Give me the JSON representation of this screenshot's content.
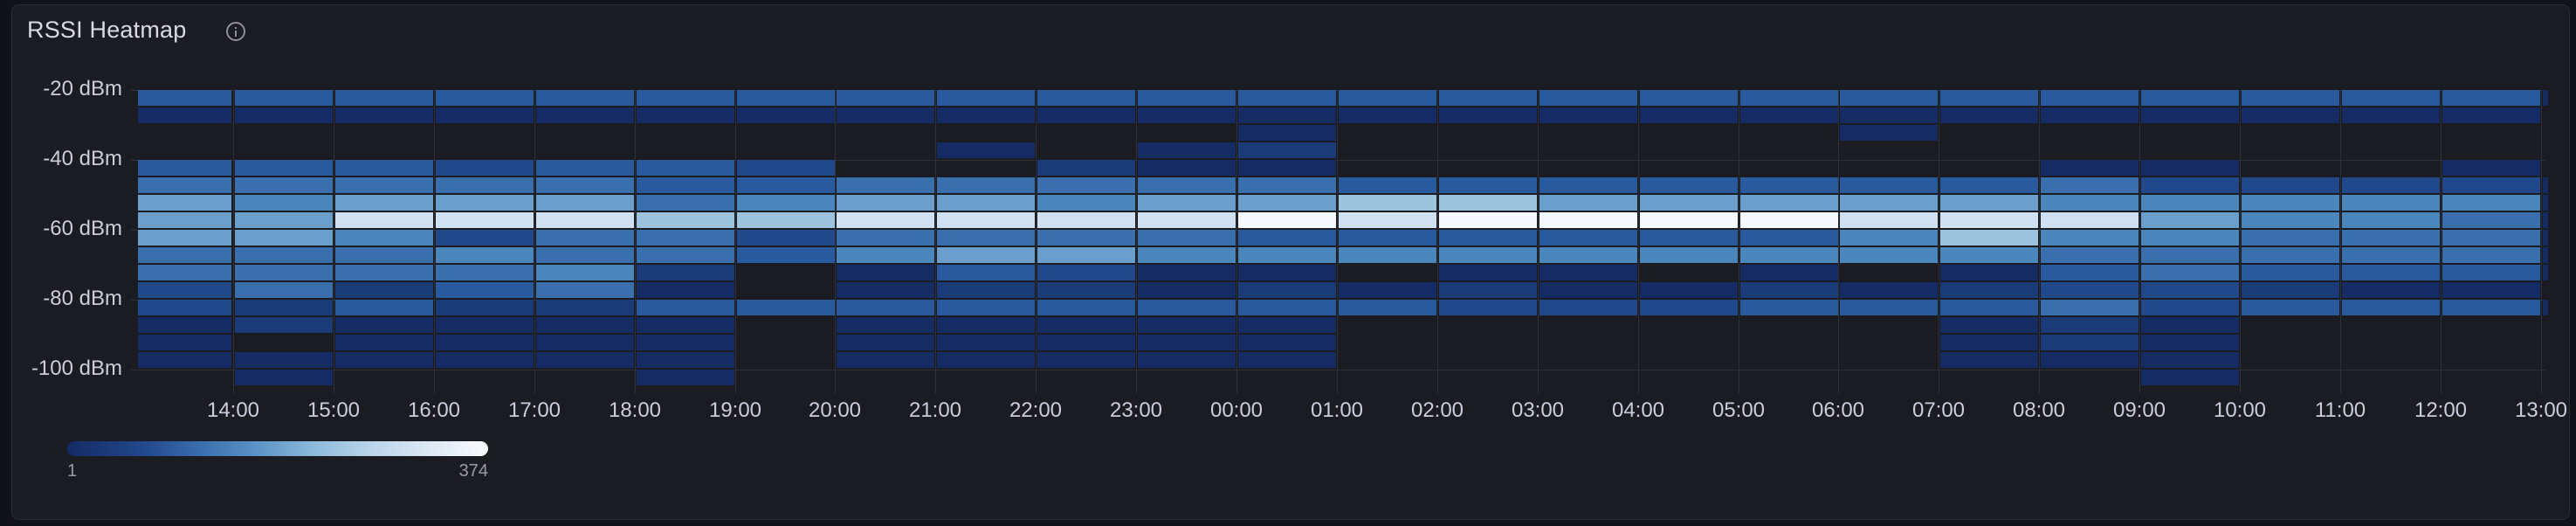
{
  "panel": {
    "title": "RSSI Heatmap",
    "info_icon": "info-circle-icon"
  },
  "chart_data": {
    "type": "heatmap",
    "title": "RSSI Heatmap",
    "xlabel": "",
    "ylabel": "",
    "y_tick_labels": [
      "-20 dBm",
      "-40 dBm",
      "-60 dBm",
      "-80 dBm",
      "-100 dBm"
    ],
    "y_ticks": [
      -20,
      -40,
      -60,
      -80,
      -100
    ],
    "y_bucket_size_dbm": 5,
    "y_buckets": [
      "-20",
      "-25",
      "-30",
      "-35",
      "-40",
      "-45",
      "-50",
      "-55",
      "-60",
      "-65",
      "-70",
      "-75",
      "-80",
      "-85",
      "-90",
      "-95",
      "-100"
    ],
    "x_tick_labels": [
      "14:00",
      "15:00",
      "16:00",
      "17:00",
      "18:00",
      "19:00",
      "20:00",
      "21:00",
      "22:00",
      "23:00",
      "00:00",
      "01:00",
      "02:00",
      "03:00",
      "04:00",
      "05:00",
      "06:00",
      "07:00",
      "08:00",
      "09:00",
      "10:00",
      "11:00",
      "12:00",
      "13:00"
    ],
    "x_buckets": [
      "13:00",
      "14:00",
      "15:00",
      "16:00",
      "17:00",
      "18:00",
      "19:00",
      "20:00",
      "21:00",
      "22:00",
      "23:00",
      "00:00",
      "01:00",
      "02:00",
      "03:00",
      "04:00",
      "05:00",
      "06:00",
      "07:00",
      "08:00",
      "09:00",
      "10:00",
      "11:00",
      "12:00",
      "13:00"
    ],
    "intensity_scale": "0 = empty, 1 (darkest blue) .. 10 (white); counts range 1..374",
    "intensity": [
      [
        4,
        1,
        0,
        0,
        4,
        5,
        7,
        7,
        7,
        5,
        5,
        3,
        3,
        1,
        1,
        1,
        0
      ],
      [
        4,
        1,
        0,
        0,
        4,
        5,
        6,
        7,
        7,
        5,
        5,
        5,
        2,
        2,
        0,
        1,
        1
      ],
      [
        4,
        1,
        0,
        0,
        4,
        5,
        7,
        9,
        6,
        5,
        5,
        2,
        4,
        1,
        1,
        1,
        0
      ],
      [
        4,
        1,
        0,
        0,
        3,
        5,
        7,
        9,
        3,
        6,
        5,
        4,
        2,
        1,
        1,
        1,
        0
      ],
      [
        4,
        1,
        0,
        0,
        4,
        5,
        7,
        9,
        5,
        5,
        6,
        5,
        2,
        1,
        1,
        1,
        0
      ],
      [
        4,
        1,
        0,
        0,
        4,
        4,
        5,
        8,
        5,
        5,
        2,
        1,
        4,
        1,
        1,
        1,
        1
      ],
      [
        4,
        1,
        0,
        0,
        3,
        4,
        6,
        8,
        3,
        4,
        0,
        0,
        4,
        0,
        0,
        0,
        0
      ],
      [
        4,
        1,
        0,
        0,
        0,
        5,
        7,
        9,
        5,
        6,
        1,
        1,
        4,
        1,
        1,
        1,
        0
      ],
      [
        4,
        1,
        0,
        1,
        0,
        5,
        7,
        9,
        5,
        7,
        4,
        2,
        4,
        1,
        1,
        1,
        0
      ],
      [
        4,
        1,
        0,
        0,
        2,
        5,
        6,
        9,
        5,
        7,
        3,
        2,
        4,
        1,
        1,
        1,
        0
      ],
      [
        4,
        1,
        0,
        1,
        1,
        5,
        7,
        9,
        5,
        6,
        1,
        1,
        4,
        1,
        1,
        1,
        0
      ],
      [
        4,
        1,
        1,
        2,
        1,
        5,
        7,
        10,
        4,
        6,
        1,
        2,
        4,
        1,
        1,
        1,
        0
      ],
      [
        4,
        1,
        0,
        0,
        0,
        4,
        8,
        9,
        4,
        6,
        0,
        1,
        4,
        0,
        0,
        0,
        0
      ],
      [
        4,
        1,
        0,
        0,
        0,
        4,
        8,
        10,
        4,
        6,
        1,
        2,
        3,
        0,
        0,
        0,
        0
      ],
      [
        4,
        1,
        0,
        0,
        0,
        4,
        7,
        10,
        4,
        6,
        1,
        1,
        3,
        0,
        0,
        0,
        0
      ],
      [
        4,
        1,
        0,
        0,
        0,
        4,
        7,
        10,
        4,
        6,
        0,
        1,
        3,
        0,
        0,
        0,
        0
      ],
      [
        4,
        1,
        0,
        0,
        0,
        4,
        7,
        10,
        4,
        6,
        1,
        2,
        4,
        0,
        0,
        0,
        0
      ],
      [
        4,
        1,
        1,
        0,
        0,
        4,
        7,
        9,
        6,
        6,
        0,
        1,
        4,
        0,
        0,
        0,
        0
      ],
      [
        4,
        1,
        0,
        0,
        0,
        4,
        7,
        9,
        8,
        6,
        1,
        2,
        4,
        1,
        1,
        1,
        0
      ],
      [
        4,
        1,
        0,
        0,
        1,
        5,
        6,
        9,
        6,
        5,
        4,
        3,
        5,
        2,
        2,
        1,
        0
      ],
      [
        4,
        1,
        0,
        0,
        1,
        3,
        6,
        7,
        6,
        5,
        5,
        3,
        3,
        1,
        1,
        1,
        1
      ],
      [
        4,
        1,
        0,
        0,
        0,
        3,
        6,
        6,
        5,
        5,
        4,
        2,
        4,
        0,
        0,
        0,
        0
      ],
      [
        4,
        1,
        0,
        0,
        0,
        3,
        6,
        6,
        5,
        5,
        4,
        1,
        4,
        0,
        0,
        0,
        0
      ],
      [
        4,
        1,
        0,
        0,
        1,
        3,
        6,
        5,
        5,
        5,
        4,
        1,
        4,
        0,
        0,
        0,
        0
      ],
      [
        1,
        0,
        0,
        0,
        0,
        1,
        1,
        1,
        1,
        1,
        1,
        0,
        1,
        0,
        0,
        0,
        0
      ]
    ],
    "color_levels": [
      "#1b1c21",
      "#142b64",
      "#1a3a78",
      "#22488c",
      "#2a5a9e",
      "#3a6fae",
      "#4a86bb",
      "#6a9fcb",
      "#9cc2de",
      "#cfe0f0",
      "#f5f9fe"
    ],
    "legend": {
      "min": "1",
      "max": "374",
      "gradient_from": "#142b64",
      "gradient_to": "#f7fafe",
      "position": "bottom-left"
    },
    "grid": true
  },
  "legend": {
    "min_label": "1",
    "max_label": "374"
  }
}
